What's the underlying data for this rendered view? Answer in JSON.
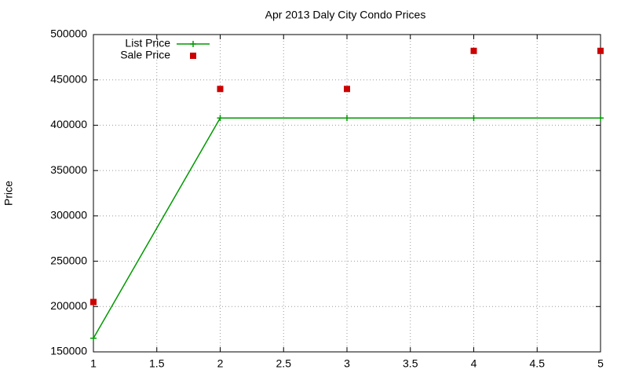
{
  "chart_data": {
    "type": "line",
    "title": "Apr 2013 Daly City Condo Prices",
    "y_label": "Price",
    "x": [
      1,
      2,
      3,
      4,
      5
    ],
    "series": [
      {
        "name": "List Price",
        "color": "#009900",
        "style": "linespoints",
        "values": [
          165000,
          408000,
          408000,
          408000,
          408000
        ]
      },
      {
        "name": "Sale Price",
        "color": "#cc0000",
        "style": "points",
        "values": [
          205000,
          440000,
          440000,
          482000,
          482000
        ]
      }
    ],
    "xlim": [
      1,
      5
    ],
    "xticks": [
      1,
      1.5,
      2,
      2.5,
      3,
      3.5,
      4,
      4.5,
      5
    ],
    "ylim": [
      150000,
      500000
    ],
    "yticks": [
      150000,
      200000,
      250000,
      300000,
      350000,
      400000,
      450000,
      500000
    ],
    "grid": true,
    "legend": "top-left"
  }
}
